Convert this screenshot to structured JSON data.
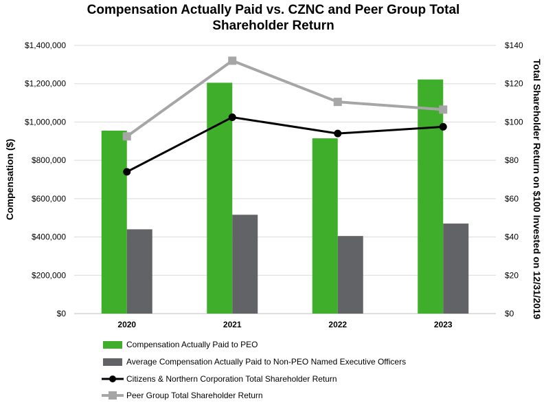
{
  "chart_data": {
    "type": "bar",
    "title": "Compensation Actually Paid vs. CZNC and Peer Group Total Shareholder Return",
    "title_lines": [
      "Compensation Actually Paid vs. CZNC and Peer Group Total",
      "Shareholder Return"
    ],
    "categories": [
      "2020",
      "2021",
      "2022",
      "2023"
    ],
    "ylabel": "Compensation ($)",
    "y2label": "Total Shareholder Return on $100 Invested on 12/31/2019",
    "ylim": [
      0,
      1400000
    ],
    "y2lim": [
      0,
      140
    ],
    "yticks": [
      "$0",
      "$200,000",
      "$400,000",
      "$600,000",
      "$800,000",
      "$1,000,000",
      "$1,200,000",
      "$1,400,000"
    ],
    "y2ticks": [
      "$0",
      "$20",
      "$40",
      "$60",
      "$80",
      "$100",
      "$120",
      "$140"
    ],
    "grid": true,
    "legend_position": "bottom",
    "series": [
      {
        "name": "Compensation Actually Paid to PEO",
        "type": "bar",
        "axis": "left",
        "color": "#3fae2a",
        "values": [
          955000,
          1205000,
          915000,
          1222000
        ]
      },
      {
        "name": "Average Compensation Actually Paid to Non-PEO Named Executive Officers",
        "type": "bar",
        "axis": "left",
        "color": "#626366",
        "values": [
          440000,
          516000,
          405000,
          470000
        ]
      },
      {
        "name": "Citizens & Northern Corporation Total Shareholder Return",
        "type": "line",
        "axis": "right",
        "color": "#000000",
        "marker": "circle",
        "values": [
          74,
          102.5,
          94,
          97.5
        ]
      },
      {
        "name": "Peer Group Total Shareholder Return",
        "type": "line",
        "axis": "right",
        "color": "#a6a6a6",
        "marker": "square",
        "values": [
          92.5,
          132,
          110.5,
          106.5
        ]
      }
    ]
  }
}
